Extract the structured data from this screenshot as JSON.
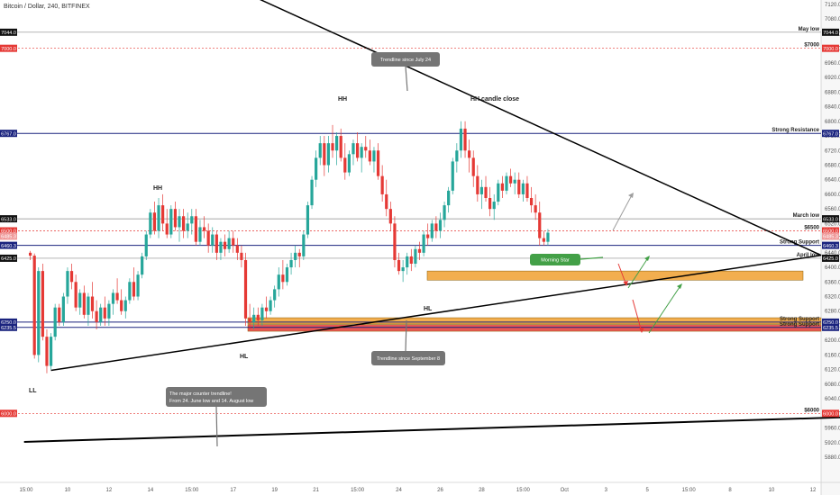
{
  "header": {
    "symbol": "Bitcoin / Dollar, 240, BITFINEX"
  },
  "colors": {
    "bull": "#26a69a",
    "bear": "#e53935",
    "resistance": "#1a237e",
    "dashed_red": "#e53935",
    "zone_orange": "#f0a030",
    "zone_red": "#e53935",
    "callout": "#757575",
    "morning_star": "#43a047",
    "arrow_red": "#e53935",
    "arrow_green": "#43a047",
    "arrow_grey": "#9e9e9e"
  },
  "chart_data": {
    "type": "candlestick",
    "ylim": [
      5900,
      7130
    ],
    "y_ticks": [
      "7120.0",
      "7080.0",
      "7040.0",
      "7000.0",
      "6960.0",
      "6920.0",
      "6880.0",
      "6840.0",
      "6800.0",
      "6760.0",
      "6720.0",
      "6680.0",
      "6640.0",
      "6600.0",
      "6560.0",
      "6520.0",
      "6480.0",
      "6440.0",
      "6400.0",
      "6360.0",
      "6320.0",
      "6280.0",
      "6240.0",
      "6200.0",
      "6160.0",
      "6120.0",
      "6080.0",
      "6040.0",
      "6000.0",
      "5960.0",
      "5920.0",
      "5880.0"
    ],
    "x_ticks": [
      "15:00",
      "10",
      "12",
      "14",
      "15:00",
      "17",
      "19",
      "21",
      "15:00",
      "24",
      "26",
      "28",
      "15:00",
      "Oct",
      "3",
      "5",
      "15:00",
      "8",
      "10",
      "12"
    ],
    "price_badges": [
      "7044.0",
      "7000.0",
      "6767.0",
      "6533.0",
      "6500.0",
      "6485.3",
      "6460.3",
      "6425.0",
      "6250.0",
      "6235.5",
      "6000.0"
    ],
    "levels": [
      {
        "label": "May low",
        "price": 7044,
        "style": "grey"
      },
      {
        "label": "$7000",
        "price": 7000,
        "style": "dashed_red"
      },
      {
        "label": "Strong Resistance",
        "price": 6767,
        "style": "blue"
      },
      {
        "label": "March low",
        "price": 6533,
        "style": "grey"
      },
      {
        "label": "$6500",
        "price": 6500,
        "style": "dashed_red"
      },
      {
        "label": "Strong Support",
        "price": 6460.3,
        "style": "blue"
      },
      {
        "label": "April low",
        "price": 6425,
        "style": "grey"
      },
      {
        "label": "Strong Support",
        "price": 6250,
        "style": "blue"
      },
      {
        "label": "Strong Support",
        "price": 6235.5,
        "style": "blue"
      },
      {
        "label": "$6000",
        "price": 6000,
        "style": "dashed_red"
      }
    ],
    "zones": [
      {
        "from": 6365,
        "to": 6390
      },
      {
        "from": 6245,
        "to": 6262
      },
      {
        "from": 6225,
        "to": 6243
      }
    ],
    "trendlines": [
      {
        "from": {
          "x": 0.5,
          "y": 7400
        },
        "to": {
          "x": 19.2,
          "y": 6433
        }
      },
      {
        "from": {
          "x": 0.6,
          "y": 6118
        },
        "to": {
          "x": 19.2,
          "y": 6433
        }
      },
      {
        "from": {
          "x": -0.05,
          "y": 5922
        },
        "to": {
          "x": 19.95,
          "y": 5990
        }
      }
    ],
    "annotations": [
      "LL",
      "HH",
      "HH",
      "HL",
      "HL",
      "HH candle close"
    ],
    "callouts": [
      {
        "text": [
          "Trendline since July 24"
        ]
      },
      {
        "text": [
          "Trendline since September 8"
        ]
      },
      {
        "text": [
          "The major counter trendline!",
          "From 24. June low and 14. August low"
        ]
      },
      {
        "text": [
          "Morning Star"
        ]
      }
    ],
    "candles": [
      [
        0.1,
        6440,
        6445,
        6420,
        6432
      ],
      [
        0.2,
        6432,
        6438,
        6150,
        6160
      ],
      [
        0.3,
        6160,
        6400,
        6140,
        6390
      ],
      [
        0.4,
        6390,
        6410,
        6200,
        6210
      ],
      [
        0.5,
        6210,
        6230,
        6110,
        6130
      ],
      [
        0.6,
        6130,
        6220,
        6120,
        6210
      ],
      [
        0.7,
        6210,
        6300,
        6200,
        6290
      ],
      [
        0.8,
        6290,
        6300,
        6240,
        6250
      ],
      [
        0.9,
        6250,
        6330,
        6240,
        6320
      ],
      [
        1.0,
        6320,
        6400,
        6300,
        6390
      ],
      [
        1.1,
        6390,
        6410,
        6340,
        6360
      ],
      [
        1.2,
        6360,
        6380,
        6280,
        6290
      ],
      [
        1.3,
        6290,
        6340,
        6270,
        6330
      ],
      [
        1.4,
        6330,
        6350,
        6260,
        6270
      ],
      [
        1.5,
        6270,
        6330,
        6240,
        6320
      ],
      [
        1.6,
        6320,
        6360,
        6260,
        6280
      ],
      [
        1.7,
        6280,
        6310,
        6230,
        6250
      ],
      [
        1.8,
        6250,
        6300,
        6240,
        6290
      ],
      [
        1.9,
        6290,
        6320,
        6240,
        6260
      ],
      [
        2.0,
        6260,
        6310,
        6240,
        6300
      ],
      [
        2.1,
        6300,
        6340,
        6270,
        6330
      ],
      [
        2.2,
        6330,
        6370,
        6300,
        6310
      ],
      [
        2.3,
        6310,
        6340,
        6270,
        6280
      ],
      [
        2.4,
        6280,
        6320,
        6260,
        6310
      ],
      [
        2.5,
        6310,
        6370,
        6300,
        6360
      ],
      [
        2.6,
        6360,
        6400,
        6310,
        6320
      ],
      [
        2.7,
        6320,
        6390,
        6310,
        6380
      ],
      [
        2.8,
        6380,
        6440,
        6370,
        6430
      ],
      [
        2.9,
        6430,
        6500,
        6420,
        6490
      ],
      [
        3.0,
        6490,
        6560,
        6480,
        6550
      ],
      [
        3.1,
        6550,
        6580,
        6490,
        6500
      ],
      [
        3.2,
        6500,
        6590,
        6480,
        6570
      ],
      [
        3.3,
        6570,
        6600,
        6500,
        6520
      ],
      [
        3.4,
        6520,
        6560,
        6480,
        6490
      ],
      [
        3.5,
        6490,
        6570,
        6480,
        6560
      ],
      [
        3.6,
        6560,
        6580,
        6500,
        6510
      ],
      [
        3.7,
        6510,
        6560,
        6470,
        6540
      ],
      [
        3.8,
        6540,
        6560,
        6480,
        6500
      ],
      [
        3.9,
        6500,
        6550,
        6480,
        6520
      ],
      [
        4.0,
        6520,
        6560,
        6490,
        6540
      ],
      [
        4.1,
        6540,
        6560,
        6460,
        6470
      ],
      [
        4.2,
        6470,
        6530,
        6460,
        6510
      ],
      [
        4.3,
        6510,
        6540,
        6480,
        6500
      ],
      [
        4.4,
        6500,
        6520,
        6440,
        6460
      ],
      [
        4.5,
        6460,
        6510,
        6440,
        6490
      ],
      [
        4.6,
        6490,
        6500,
        6420,
        6440
      ],
      [
        4.7,
        6440,
        6480,
        6420,
        6470
      ],
      [
        4.8,
        6470,
        6490,
        6430,
        6450
      ],
      [
        4.9,
        6450,
        6500,
        6440,
        6480
      ],
      [
        5.0,
        6480,
        6500,
        6440,
        6460
      ],
      [
        5.1,
        6460,
        6480,
        6420,
        6440
      ],
      [
        5.2,
        6440,
        6460,
        6400,
        6420
      ],
      [
        5.3,
        6420,
        6440,
        6240,
        6260
      ],
      [
        5.4,
        6260,
        6300,
        6230,
        6250
      ],
      [
        5.5,
        6250,
        6290,
        6230,
        6270
      ],
      [
        5.6,
        6270,
        6290,
        6240,
        6255
      ],
      [
        5.7,
        6255,
        6300,
        6240,
        6290
      ],
      [
        5.8,
        6290,
        6320,
        6260,
        6280
      ],
      [
        5.9,
        6280,
        6320,
        6270,
        6310
      ],
      [
        6.0,
        6310,
        6350,
        6290,
        6340
      ],
      [
        6.1,
        6340,
        6400,
        6320,
        6380
      ],
      [
        6.2,
        6380,
        6420,
        6340,
        6360
      ],
      [
        6.3,
        6360,
        6410,
        6350,
        6400
      ],
      [
        6.4,
        6400,
        6440,
        6380,
        6420
      ],
      [
        6.5,
        6420,
        6460,
        6400,
        6440
      ],
      [
        6.6,
        6440,
        6450,
        6400,
        6430
      ],
      [
        6.7,
        6430,
        6500,
        6420,
        6490
      ],
      [
        6.8,
        6490,
        6580,
        6480,
        6570
      ],
      [
        6.9,
        6570,
        6650,
        6560,
        6640
      ],
      [
        7.0,
        6640,
        6720,
        6620,
        6700
      ],
      [
        7.1,
        6700,
        6760,
        6680,
        6740
      ],
      [
        7.2,
        6740,
        6760,
        6650,
        6680
      ],
      [
        7.3,
        6680,
        6760,
        6660,
        6740
      ],
      [
        7.4,
        6740,
        6790,
        6700,
        6720
      ],
      [
        7.5,
        6720,
        6770,
        6680,
        6760
      ],
      [
        7.6,
        6760,
        6780,
        6690,
        6700
      ],
      [
        7.7,
        6700,
        6740,
        6640,
        6660
      ],
      [
        7.8,
        6660,
        6720,
        6650,
        6710
      ],
      [
        7.9,
        6710,
        6750,
        6680,
        6740
      ],
      [
        8.0,
        6740,
        6770,
        6690,
        6700
      ],
      [
        8.1,
        6700,
        6740,
        6660,
        6730
      ],
      [
        8.2,
        6730,
        6760,
        6700,
        6720
      ],
      [
        8.3,
        6720,
        6750,
        6680,
        6690
      ],
      [
        8.4,
        6690,
        6730,
        6660,
        6720
      ],
      [
        8.5,
        6720,
        6740,
        6640,
        6650
      ],
      [
        8.6,
        6650,
        6680,
        6580,
        6600
      ],
      [
        8.7,
        6600,
        6640,
        6540,
        6560
      ],
      [
        8.8,
        6560,
        6580,
        6500,
        6520
      ],
      [
        8.9,
        6520,
        6540,
        6400,
        6420
      ],
      [
        9.0,
        6420,
        6440,
        6380,
        6390
      ],
      [
        9.1,
        6390,
        6420,
        6360,
        6400
      ],
      [
        9.2,
        6400,
        6440,
        6380,
        6430
      ],
      [
        9.3,
        6430,
        6450,
        6390,
        6410
      ],
      [
        9.4,
        6410,
        6460,
        6400,
        6450
      ],
      [
        9.5,
        6450,
        6470,
        6420,
        6440
      ],
      [
        9.6,
        6440,
        6500,
        6430,
        6490
      ],
      [
        9.7,
        6490,
        6520,
        6460,
        6480
      ],
      [
        9.8,
        6480,
        6530,
        6470,
        6520
      ],
      [
        9.9,
        6520,
        6540,
        6480,
        6500
      ],
      [
        10.0,
        6500,
        6550,
        6480,
        6530
      ],
      [
        10.1,
        6530,
        6580,
        6510,
        6570
      ],
      [
        10.2,
        6570,
        6620,
        6550,
        6610
      ],
      [
        10.3,
        6610,
        6700,
        6600,
        6690
      ],
      [
        10.4,
        6690,
        6740,
        6660,
        6720
      ],
      [
        10.5,
        6720,
        6800,
        6700,
        6780
      ],
      [
        10.6,
        6780,
        6800,
        6700,
        6720
      ],
      [
        10.7,
        6720,
        6750,
        6660,
        6700
      ],
      [
        10.8,
        6700,
        6720,
        6620,
        6650
      ],
      [
        10.9,
        6650,
        6680,
        6580,
        6600
      ],
      [
        11.0,
        6600,
        6640,
        6560,
        6620
      ],
      [
        11.1,
        6620,
        6650,
        6580,
        6590
      ],
      [
        11.2,
        6590,
        6620,
        6540,
        6560
      ],
      [
        11.3,
        6560,
        6600,
        6530,
        6580
      ],
      [
        11.4,
        6580,
        6640,
        6570,
        6630
      ],
      [
        11.5,
        6630,
        6650,
        6590,
        6610
      ],
      [
        11.6,
        6610,
        6660,
        6600,
        6650
      ],
      [
        11.7,
        6650,
        6670,
        6620,
        6630
      ],
      [
        11.8,
        6630,
        6660,
        6600,
        6640
      ],
      [
        11.9,
        6640,
        6660,
        6590,
        6600
      ],
      [
        12.0,
        6600,
        6640,
        6580,
        6630
      ],
      [
        12.1,
        6630,
        6650,
        6580,
        6590
      ],
      [
        12.2,
        6590,
        6620,
        6550,
        6570
      ],
      [
        12.3,
        6570,
        6600,
        6530,
        6550
      ],
      [
        12.4,
        6550,
        6580,
        6460,
        6480
      ],
      [
        12.5,
        6480,
        6500,
        6460,
        6470
      ],
      [
        12.6,
        6470,
        6505,
        6460,
        6495
      ]
    ]
  }
}
